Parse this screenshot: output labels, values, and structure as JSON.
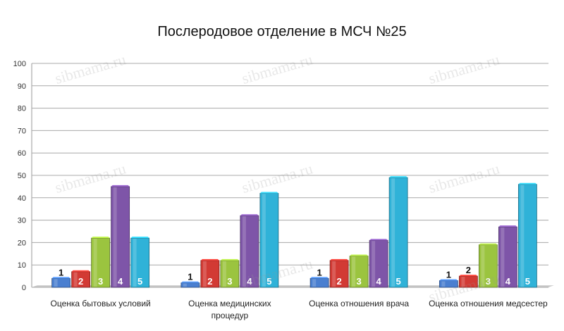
{
  "chart_data": {
    "type": "bar",
    "title": "Послеродовое отделение в МСЧ №25",
    "categories": [
      "Оценка бытовых условий",
      "Оценка медицинских процедур",
      "Оценка отношения врача",
      "Оценка отношения медсестер"
    ],
    "category_label_lines": [
      [
        "Оценка бытовых условий"
      ],
      [
        "Оценка медицинских",
        "процедур"
      ],
      [
        "Оценка отношения врача"
      ],
      [
        "Оценка отношения медсестер"
      ]
    ],
    "series": [
      {
        "name": "1",
        "color": "#4a7fd0",
        "values": [
          4,
          2,
          4,
          3
        ]
      },
      {
        "name": "2",
        "color": "#d23a34",
        "values": [
          7,
          12,
          12,
          5
        ]
      },
      {
        "name": "3",
        "color": "#9bc43f",
        "values": [
          22,
          12,
          14,
          19
        ]
      },
      {
        "name": "4",
        "color": "#7e55a8",
        "values": [
          45,
          32,
          21,
          27
        ]
      },
      {
        "name": "5",
        "color": "#2fb2d8",
        "values": [
          22,
          42,
          49,
          46
        ]
      }
    ],
    "ylim": [
      0,
      100
    ],
    "yticks": [
      0,
      10,
      20,
      30,
      40,
      50,
      60,
      70,
      80,
      90,
      100
    ],
    "grid": true,
    "legend": "none"
  },
  "watermark_text": "sibmama.ru"
}
